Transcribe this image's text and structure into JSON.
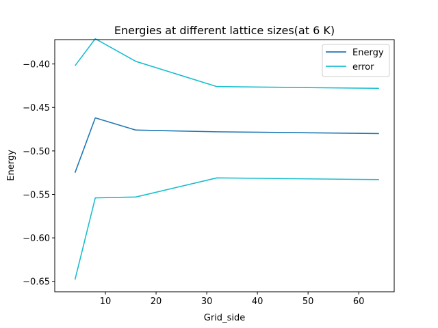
{
  "chart_data": {
    "type": "line",
    "title": "Energies at different lattice sizes(at 6 K)",
    "xlabel": "Grid_side",
    "ylabel": "Energy",
    "x": [
      4,
      8,
      16,
      32,
      64
    ],
    "xlim": [
      0.0,
      67.0
    ],
    "ylim": [
      -0.662,
      -0.372
    ],
    "xticks": [
      10,
      20,
      30,
      40,
      50,
      60
    ],
    "yticks": [
      -0.65,
      -0.6,
      -0.55,
      -0.5,
      -0.45,
      -0.4
    ],
    "ytick_labels": [
      "−0.65",
      "−0.60",
      "−0.55",
      "−0.50",
      "−0.45",
      "−0.40"
    ],
    "grid": false,
    "legend_position": "top-right",
    "legend": [
      "Energy",
      "error"
    ],
    "series": [
      {
        "name": "Energy",
        "color": "#1f77b4",
        "values": [
          -0.525,
          -0.462,
          -0.476,
          -0.478,
          -0.48
        ]
      },
      {
        "name": "error",
        "color": "#17becf",
        "values": [
          -0.402,
          -0.371,
          -0.397,
          -0.426,
          -0.428
        ]
      },
      {
        "name": "error",
        "color": "#17becf",
        "values": [
          -0.648,
          -0.554,
          -0.553,
          -0.531,
          -0.533
        ]
      }
    ]
  }
}
